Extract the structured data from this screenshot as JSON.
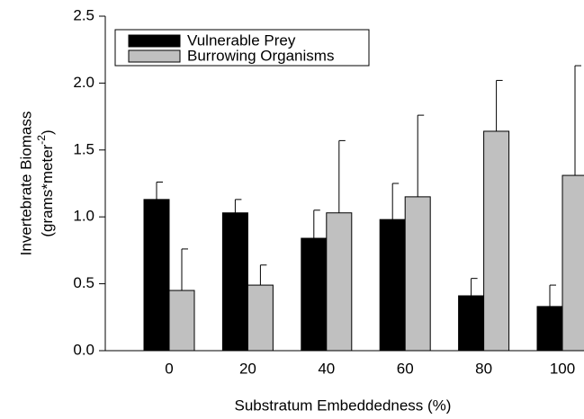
{
  "chart_data": {
    "type": "bar",
    "x_label": "Substratum Embeddedness (%)",
    "y_label": {
      "line1": "Invertebrate Biomass",
      "line2": "(grams*meter",
      "superscript": "-2",
      "suffix": ")"
    },
    "categories": [
      "0",
      "20",
      "40",
      "60",
      "80",
      "100"
    ],
    "series": [
      {
        "name": "Vulnerable Prey",
        "color": "#000000",
        "values": [
          1.13,
          1.03,
          0.84,
          0.98,
          0.41,
          0.33
        ],
        "errors": [
          0.13,
          0.1,
          0.21,
          0.27,
          0.13,
          0.16
        ]
      },
      {
        "name": "Burrowing Organisms",
        "color": "#c0c0c0",
        "values": [
          0.45,
          0.49,
          1.03,
          1.15,
          1.64,
          1.31
        ],
        "errors": [
          0.31,
          0.15,
          0.54,
          0.61,
          0.38,
          0.82
        ]
      }
    ],
    "ylim": [
      0,
      2.5
    ],
    "yticks": [
      {
        "value": 0,
        "label": "0.0"
      },
      0.5,
      {
        "value": 1,
        "label": "1.0"
      },
      1.5,
      {
        "value": 2,
        "label": "2.0"
      },
      2.5
    ],
    "legend": "upper left"
  }
}
